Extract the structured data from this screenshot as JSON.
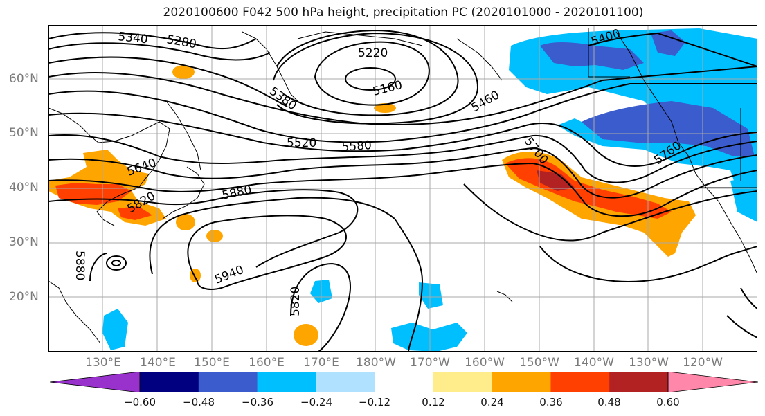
{
  "title": "2020100600 F042 500 hPa height, precipitation PC (2020101000 - 2020101100)",
  "latitude_labels": [
    "60°N",
    "50°N",
    "40°N",
    "30°N",
    "20°N"
  ],
  "longitude_labels": [
    "130°E",
    "140°E",
    "150°E",
    "160°E",
    "170°E",
    "180°W",
    "170°W",
    "160°W",
    "150°W",
    "140°W",
    "130°W",
    "120°W"
  ],
  "contour_labels": [
    "5340",
    "5280",
    "5220",
    "5160",
    "5380",
    "5460",
    "5400",
    "5520",
    "5580",
    "5640",
    "5700",
    "5760",
    "5880",
    "5820",
    "5940",
    "5820",
    "5880"
  ],
  "colorbar": {
    "tick_labels": [
      "−0.60",
      "−0.48",
      "−0.36",
      "−0.24",
      "−0.12",
      "0.12",
      "0.24",
      "0.36",
      "0.48",
      "0.60"
    ],
    "colors": [
      "#9932cc",
      "#000080",
      "#3a5ccc",
      "#00bfff",
      "#b0e2ff",
      "#ffffff",
      "#ffec8b",
      "#ffa500",
      "#ff4000",
      "#b22222",
      "#ff88aa"
    ]
  }
}
